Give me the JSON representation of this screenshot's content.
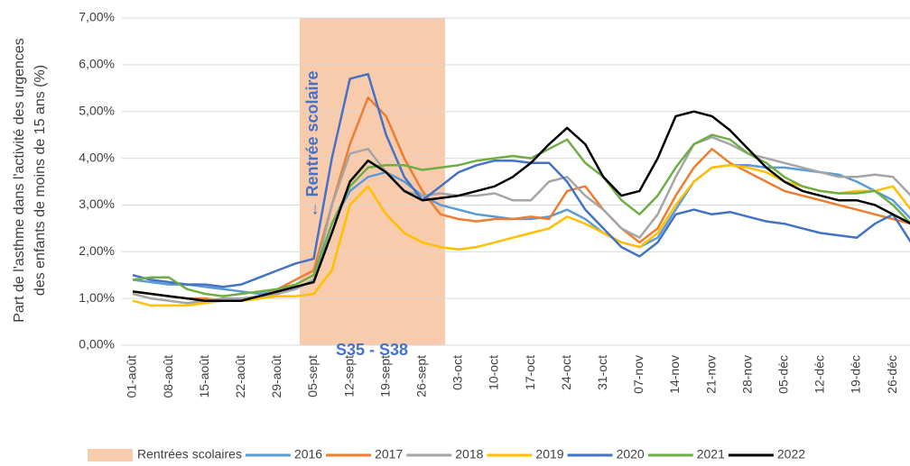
{
  "chart_data": {
    "type": "line",
    "y_label_lines": [
      "Part de l'asthme dans l'activité des urgences",
      "des enfants de moins de 15 ans (%)"
    ],
    "annotations": [
      "← Rentrée scolaire",
      "S35 - S38"
    ],
    "band": {
      "name": "Rentrées scolaires",
      "color": "#f8cbad"
    },
    "categories": [
      "01-août",
      null,
      "08-août",
      null,
      "15-août",
      null,
      "22-août",
      null,
      "29-août",
      null,
      "05-sept",
      null,
      "12-sept",
      null,
      "19-sept",
      null,
      "26-sept",
      null,
      "03-oct",
      null,
      "10-oct",
      null,
      "17-oct",
      null,
      "24-oct",
      null,
      "31-oct",
      null,
      "07-nov",
      null,
      "14-nov",
      null,
      "21-nov",
      null,
      "28-nov",
      null,
      "05-déc",
      null,
      "12-déc",
      null,
      "19-déc",
      null,
      "26-déc",
      null
    ],
    "ylim": [
      0,
      7
    ],
    "yticks": [
      {
        "value": 0,
        "label": "0,00%"
      },
      {
        "value": 1,
        "label": "1,00%"
      },
      {
        "value": 2,
        "label": "2,00%"
      },
      {
        "value": 3,
        "label": "3,00%"
      },
      {
        "value": 4,
        "label": "4,00%"
      },
      {
        "value": 5,
        "label": "5,00%"
      },
      {
        "value": 6,
        "label": "6,00%"
      },
      {
        "value": 7,
        "label": "7,00%"
      }
    ],
    "grid": true,
    "series": [
      {
        "name": "2016",
        "color": "#5b9bd5",
        "values": [
          1.4,
          1.35,
          1.3,
          1.3,
          1.25,
          1.2,
          1.15,
          1.1,
          1.15,
          1.2,
          1.4,
          2.6,
          3.3,
          3.6,
          3.7,
          3.5,
          3.2,
          3.0,
          2.9,
          2.8,
          2.75,
          2.7,
          2.7,
          2.75,
          2.9,
          2.7,
          2.4,
          2.2,
          2.1,
          2.3,
          2.9,
          3.5,
          3.8,
          3.85,
          3.85,
          3.8,
          3.8,
          3.75,
          3.7,
          3.65,
          3.5,
          3.3,
          3.1,
          2.7
        ]
      },
      {
        "name": "2017",
        "color": "#ed7d31",
        "values": [
          1.15,
          1.1,
          1.05,
          1.0,
          1.0,
          0.95,
          0.95,
          1.0,
          1.2,
          1.4,
          1.6,
          3.0,
          4.3,
          5.3,
          4.9,
          4.0,
          3.3,
          2.8,
          2.7,
          2.65,
          2.7,
          2.7,
          2.75,
          2.7,
          3.3,
          3.4,
          2.9,
          2.5,
          2.2,
          2.5,
          3.2,
          3.8,
          4.2,
          3.9,
          3.7,
          3.5,
          3.3,
          3.2,
          3.1,
          3.0,
          2.9,
          2.8,
          2.7,
          2.6
        ]
      },
      {
        "name": "2018",
        "color": "#a5a5a5",
        "values": [
          1.1,
          1.0,
          0.95,
          0.9,
          0.95,
          1.0,
          1.0,
          1.05,
          1.1,
          1.2,
          1.4,
          3.0,
          4.1,
          4.2,
          3.7,
          3.3,
          3.2,
          3.25,
          3.2,
          3.2,
          3.25,
          3.1,
          3.1,
          3.5,
          3.6,
          3.2,
          2.9,
          2.5,
          2.3,
          2.8,
          3.6,
          4.3,
          4.45,
          4.3,
          4.1,
          4.0,
          3.9,
          3.8,
          3.7,
          3.6,
          3.6,
          3.65,
          3.6,
          3.2
        ]
      },
      {
        "name": "2019",
        "color": "#ffc000",
        "values": [
          0.95,
          0.85,
          0.85,
          0.85,
          0.9,
          0.95,
          0.95,
          1.0,
          1.05,
          1.05,
          1.1,
          1.6,
          3.0,
          3.4,
          2.8,
          2.4,
          2.2,
          2.1,
          2.05,
          2.1,
          2.2,
          2.3,
          2.4,
          2.5,
          2.75,
          2.6,
          2.4,
          2.2,
          2.1,
          2.4,
          3.0,
          3.5,
          3.8,
          3.85,
          3.8,
          3.7,
          3.5,
          3.4,
          3.3,
          3.25,
          3.3,
          3.3,
          3.4,
          2.9
        ]
      },
      {
        "name": "2020",
        "color": "#4472c4",
        "values": [
          1.5,
          1.4,
          1.35,
          1.3,
          1.3,
          1.25,
          1.3,
          1.45,
          1.6,
          1.75,
          1.85,
          4.0,
          5.7,
          5.8,
          4.5,
          3.6,
          3.1,
          3.4,
          3.7,
          3.85,
          3.95,
          3.95,
          3.9,
          3.9,
          3.5,
          2.9,
          2.5,
          2.1,
          1.9,
          2.2,
          2.8,
          2.9,
          2.8,
          2.85,
          2.75,
          2.65,
          2.6,
          2.5,
          2.4,
          2.35,
          2.3,
          2.6,
          2.8,
          2.2
        ]
      },
      {
        "name": "2021",
        "color": "#70ad47",
        "values": [
          1.4,
          1.45,
          1.45,
          1.2,
          1.1,
          1.05,
          1.1,
          1.15,
          1.2,
          1.3,
          1.5,
          2.6,
          3.4,
          3.8,
          3.85,
          3.85,
          3.75,
          3.8,
          3.85,
          3.95,
          4.0,
          4.05,
          4.0,
          4.2,
          4.4,
          3.9,
          3.6,
          3.1,
          2.8,
          3.2,
          3.8,
          4.3,
          4.5,
          4.4,
          4.1,
          3.9,
          3.6,
          3.4,
          3.3,
          3.25,
          3.25,
          3.3,
          3.0,
          2.6
        ]
      },
      {
        "name": "2022",
        "color": "#000000",
        "values": [
          1.15,
          1.1,
          1.05,
          1.0,
          0.95,
          0.95,
          0.95,
          1.05,
          1.15,
          1.25,
          1.35,
          2.4,
          3.5,
          3.95,
          3.7,
          3.3,
          3.1,
          3.15,
          3.2,
          3.3,
          3.4,
          3.6,
          3.9,
          4.3,
          4.65,
          4.3,
          3.6,
          3.2,
          3.3,
          4.0,
          4.9,
          5.0,
          4.9,
          4.6,
          4.2,
          3.8,
          3.5,
          3.3,
          3.2,
          3.1,
          3.1,
          3.0,
          2.8,
          2.6
        ]
      }
    ]
  }
}
